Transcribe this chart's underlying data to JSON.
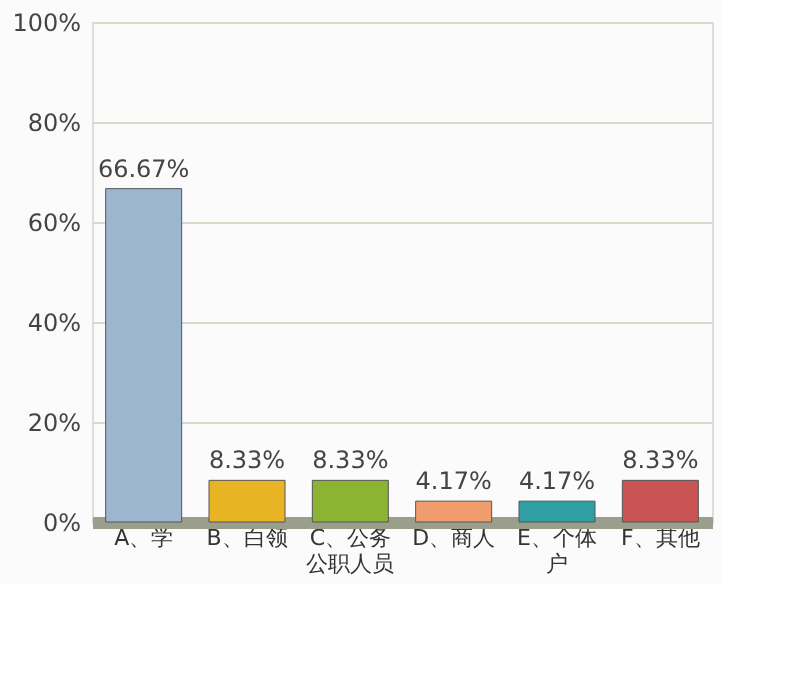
{
  "chart_data": {
    "type": "bar",
    "categories": [
      "A、学",
      "B、白领",
      "C、公务公职人员",
      "D、商人",
      "E、个体户",
      "F、其他"
    ],
    "values": [
      66.67,
      8.33,
      8.33,
      4.17,
      4.17,
      8.33
    ],
    "colors": [
      "#9cb6cf",
      "#e8b424",
      "#8db332",
      "#f19c6c",
      "#2f9fa4",
      "#c95454"
    ],
    "value_labels": [
      "66.67%",
      "8.33%",
      "8.33%",
      "4.17%",
      "4.17%",
      "8.33%"
    ],
    "ylim": [
      0,
      100
    ],
    "yticks": [
      {
        "value": 0,
        "label": "0%"
      },
      {
        "value": 20,
        "label": "20%"
      },
      {
        "value": 40,
        "label": "40%"
      },
      {
        "value": 60,
        "label": "60%"
      },
      {
        "value": 80,
        "label": "80%"
      },
      {
        "value": 100,
        "label": "100%"
      }
    ],
    "grid": "y"
  }
}
